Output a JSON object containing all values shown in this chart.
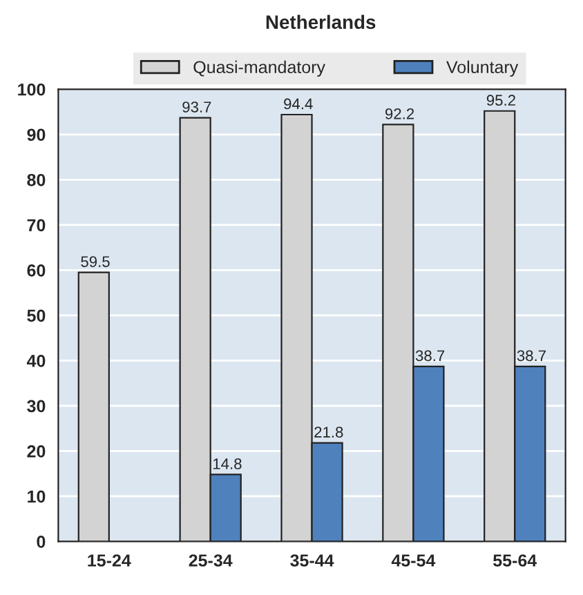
{
  "chart_data": {
    "type": "bar",
    "title": "Netherlands",
    "categories": [
      "15-24",
      "25-34",
      "35-44",
      "45-54",
      "55-64"
    ],
    "series": [
      {
        "name": "Quasi-mandatory",
        "color": "#d3d3d3",
        "values": [
          59.5,
          93.7,
          94.4,
          92.2,
          95.2
        ]
      },
      {
        "name": "Voluntary",
        "color": "#4f81bd",
        "values": [
          null,
          14.8,
          21.8,
          38.7,
          38.7
        ]
      }
    ],
    "ylim": [
      0,
      100
    ],
    "yticks": [
      0,
      10,
      20,
      30,
      40,
      50,
      60,
      70,
      80,
      90,
      100
    ],
    "grid": "y",
    "legend": "top",
    "data_labels": true
  }
}
